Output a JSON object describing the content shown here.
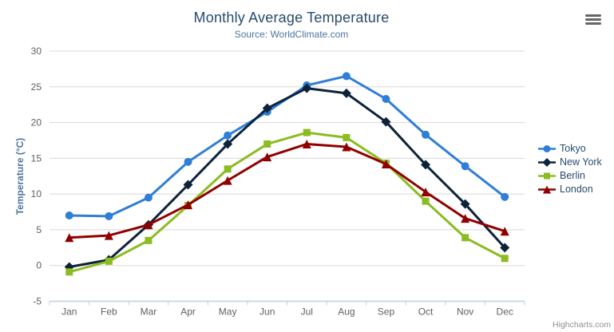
{
  "icons": {
    "context_menu": "hamburger"
  },
  "credits": "Highcharts.com",
  "chart_data": {
    "type": "line",
    "title": "Monthly Average Temperature",
    "subtitle": "Source: WorldClimate.com",
    "xlabel": "",
    "ylabel": "Temperature (°C)",
    "ylim": [
      -5,
      30
    ],
    "yticks": [
      -5,
      0,
      5,
      10,
      15,
      20,
      25,
      30
    ],
    "grid": "horizontal",
    "legend_position": "right",
    "categories": [
      "Jan",
      "Feb",
      "Mar",
      "Apr",
      "May",
      "Jun",
      "Jul",
      "Aug",
      "Sep",
      "Oct",
      "Nov",
      "Dec"
    ],
    "series": [
      {
        "name": "Tokyo",
        "color": "#2f7ed8",
        "marker": "circle",
        "values": [
          7.0,
          6.9,
          9.5,
          14.5,
          18.2,
          21.5,
          25.2,
          26.5,
          23.3,
          18.3,
          13.9,
          9.6
        ]
      },
      {
        "name": "New York",
        "color": "#0d233a",
        "marker": "diamond",
        "values": [
          -0.2,
          0.8,
          5.7,
          11.3,
          17.0,
          22.0,
          24.8,
          24.1,
          20.1,
          14.1,
          8.6,
          2.5
        ]
      },
      {
        "name": "Berlin",
        "color": "#8bbc21",
        "marker": "square",
        "values": [
          -0.9,
          0.6,
          3.5,
          8.4,
          13.5,
          17.0,
          18.6,
          17.9,
          14.3,
          9.0,
          3.9,
          1.0
        ]
      },
      {
        "name": "London",
        "color": "#910000",
        "marker": "triangle",
        "values": [
          3.9,
          4.2,
          5.7,
          8.5,
          11.9,
          15.2,
          17.0,
          16.6,
          14.2,
          10.3,
          6.6,
          4.8
        ]
      }
    ],
    "axis_colors": {
      "gridline": "#D8D8D8",
      "axis_line": "#C0D0E0",
      "tick_label": "#606060"
    }
  }
}
